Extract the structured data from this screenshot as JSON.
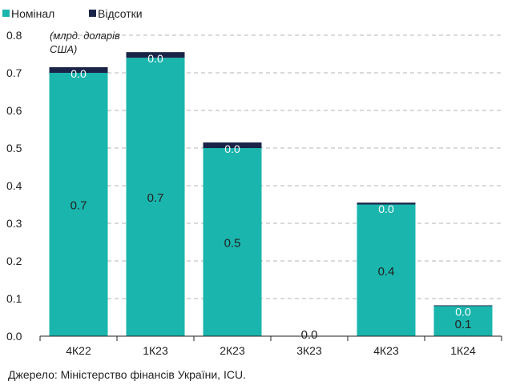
{
  "chart_data": {
    "type": "bar",
    "stacked": true,
    "categories": [
      "4К22",
      "1К23",
      "2К23",
      "3К23",
      "4К23",
      "1К24"
    ],
    "series": [
      {
        "name": "Номінал",
        "color": "#1ab5ad",
        "values": [
          0.7,
          0.74,
          0.5,
          0.0,
          0.35,
          0.08
        ],
        "labels": [
          "0.7",
          "0.7",
          "0.5",
          "",
          "0.4",
          "0.1"
        ]
      },
      {
        "name": "Відсотки",
        "color": "#1a2447",
        "values": [
          0.015,
          0.015,
          0.015,
          0.0,
          0.005,
          0.002
        ],
        "labels": [
          "0.0",
          "0.0",
          "0.0",
          "0.0",
          "0.0",
          "0.0"
        ]
      }
    ],
    "yticks": [
      "0.0",
      "0.1",
      "0.2",
      "0.3",
      "0.4",
      "0.5",
      "0.6",
      "0.7",
      "0.8"
    ],
    "ylim": [
      0,
      0.8
    ],
    "unit_line1": "(млрд. доларів",
    "unit_line2": "США)",
    "grid": true,
    "legend": "top-left"
  },
  "source": "Джерело: Міністерство фінансів України, ICU."
}
